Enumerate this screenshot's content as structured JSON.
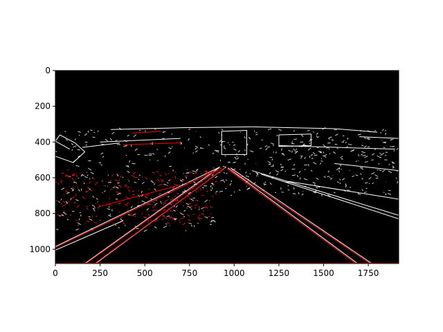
{
  "chart_data": {
    "type": "image",
    "title": "",
    "xlabel": "",
    "ylabel": "",
    "image_width": 1920,
    "image_height": 1080,
    "xlim": [
      0,
      1920
    ],
    "ylim": [
      1080,
      0
    ],
    "xticks": [
      0,
      250,
      500,
      750,
      1000,
      1250,
      1500,
      1750
    ],
    "yticks": [
      0,
      200,
      400,
      600,
      800,
      1000
    ],
    "grid": false,
    "colors": {
      "background": "#000000",
      "edges": "#ffffff",
      "detected_lines": "#ff0000"
    },
    "detected_lines": [
      {
        "x1": 0,
        "y1": 990,
        "x2": 930,
        "y2": 545
      },
      {
        "x1": 170,
        "y1": 1080,
        "x2": 925,
        "y2": 545
      },
      {
        "x1": 220,
        "y1": 1080,
        "x2": 950,
        "y2": 545
      },
      {
        "x1": 960,
        "y1": 550,
        "x2": 1680,
        "y2": 1080
      },
      {
        "x1": 975,
        "y1": 550,
        "x2": 1760,
        "y2": 1080
      },
      {
        "x1": 0,
        "y1": 1078,
        "x2": 1920,
        "y2": 1078
      },
      {
        "x1": 430,
        "y1": 350,
        "x2": 590,
        "y2": 340
      },
      {
        "x1": 380,
        "y1": 415,
        "x2": 700,
        "y2": 405
      },
      {
        "x1": 250,
        "y1": 760,
        "x2": 700,
        "y2": 640
      }
    ],
    "edge_lines": [
      {
        "x1": 0,
        "y1": 985,
        "x2": 920,
        "y2": 540
      },
      {
        "x1": 165,
        "y1": 1080,
        "x2": 920,
        "y2": 540
      },
      {
        "x1": 225,
        "y1": 1080,
        "x2": 955,
        "y2": 540
      },
      {
        "x1": 965,
        "y1": 545,
        "x2": 1690,
        "y2": 1080
      },
      {
        "x1": 980,
        "y1": 545,
        "x2": 1770,
        "y2": 1080
      },
      {
        "x1": 0,
        "y1": 1005,
        "x2": 380,
        "y2": 840
      },
      {
        "x1": 310,
        "y1": 330,
        "x2": 700,
        "y2": 320
      },
      {
        "x1": 700,
        "y1": 320,
        "x2": 1100,
        "y2": 315
      },
      {
        "x1": 1100,
        "y1": 315,
        "x2": 1560,
        "y2": 325
      },
      {
        "x1": 1560,
        "y1": 325,
        "x2": 1800,
        "y2": 345
      },
      {
        "x1": 250,
        "y1": 400,
        "x2": 700,
        "y2": 380
      },
      {
        "x1": 150,
        "y1": 430,
        "x2": 360,
        "y2": 405
      },
      {
        "x1": 1250,
        "y1": 420,
        "x2": 1900,
        "y2": 440
      },
      {
        "x1": 1100,
        "y1": 560,
        "x2": 1920,
        "y2": 810
      },
      {
        "x1": 1150,
        "y1": 580,
        "x2": 1920,
        "y2": 830
      },
      {
        "x1": 1300,
        "y1": 620,
        "x2": 1920,
        "y2": 720
      },
      {
        "x1": 1560,
        "y1": 520,
        "x2": 1920,
        "y2": 560
      },
      {
        "x1": 1700,
        "y1": 370,
        "x2": 1920,
        "y2": 380
      }
    ],
    "sign_outline": [
      {
        "x": 80,
        "y": 440
      },
      {
        "x": 0,
        "y": 395
      },
      {
        "x": 25,
        "y": 360
      },
      {
        "x": 110,
        "y": 405
      },
      {
        "x": 165,
        "y": 455
      },
      {
        "x": 100,
        "y": 515
      },
      {
        "x": 0,
        "y": 480
      }
    ],
    "sign_outline2": [
      {
        "x": 1250,
        "y": 360
      },
      {
        "x": 1430,
        "y": 355
      },
      {
        "x": 1430,
        "y": 420
      },
      {
        "x": 1250,
        "y": 425
      },
      {
        "x": 1250,
        "y": 360
      }
    ],
    "sign_outline3": [
      {
        "x": 930,
        "y": 340
      },
      {
        "x": 1070,
        "y": 335
      },
      {
        "x": 1070,
        "y": 470
      },
      {
        "x": 930,
        "y": 470
      },
      {
        "x": 930,
        "y": 340
      }
    ]
  }
}
